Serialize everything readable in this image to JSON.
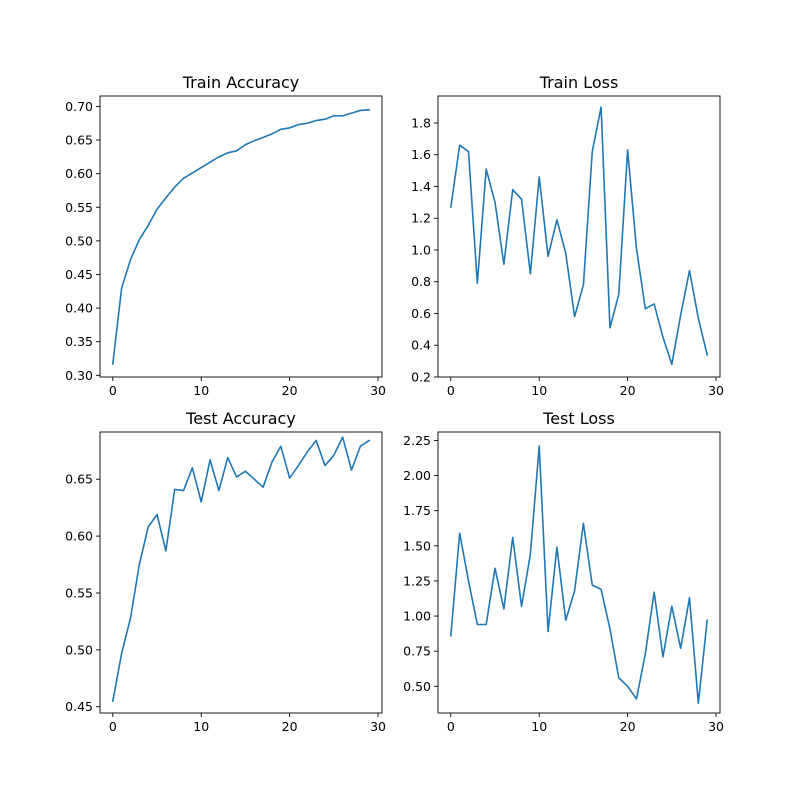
{
  "colors": {
    "line": "#1f77b4",
    "axes": "#000000",
    "background": "#ffffff"
  },
  "chart_data": [
    {
      "type": "line",
      "title": "Train Accuracy",
      "xlabel": "",
      "ylabel": "",
      "xlim": [
        -1.45,
        30.45
      ],
      "ylim": [
        0.2975,
        0.7155
      ],
      "xticks": [
        0,
        10,
        20,
        30
      ],
      "xtick_labels": [
        "0",
        "10",
        "20",
        "30"
      ],
      "yticks": [
        0.3,
        0.35,
        0.4,
        0.45,
        0.5,
        0.55,
        0.6,
        0.65,
        0.7
      ],
      "ytick_labels": [
        "0.30",
        "0.35",
        "0.40",
        "0.45",
        "0.50",
        "0.55",
        "0.60",
        "0.65",
        "0.70"
      ],
      "grid": false,
      "series": [
        {
          "x": [
            0,
            1,
            2,
            3,
            4,
            5,
            6,
            7,
            8,
            9,
            10,
            11,
            12,
            13,
            14,
            15,
            16,
            17,
            18,
            19,
            20,
            21,
            22,
            23,
            24,
            25,
            26,
            27,
            28,
            29
          ],
          "y": [
            0.317,
            0.43,
            0.472,
            0.502,
            0.523,
            0.547,
            0.564,
            0.58,
            0.593,
            0.601,
            0.609,
            0.617,
            0.625,
            0.631,
            0.634,
            0.643,
            0.649,
            0.654,
            0.659,
            0.666,
            0.668,
            0.673,
            0.675,
            0.679,
            0.681,
            0.686,
            0.686,
            0.69,
            0.694,
            0.695
          ]
        }
      ]
    },
    {
      "type": "line",
      "title": "Train Loss",
      "xlabel": "",
      "ylabel": "",
      "xlim": [
        -1.45,
        30.45
      ],
      "ylim": [
        0.2,
        1.97
      ],
      "xticks": [
        0,
        10,
        20,
        30
      ],
      "xtick_labels": [
        "0",
        "10",
        "20",
        "30"
      ],
      "yticks": [
        0.2,
        0.4,
        0.6,
        0.8,
        1.0,
        1.2,
        1.4,
        1.6,
        1.8
      ],
      "ytick_labels": [
        "0.2",
        "0.4",
        "0.6",
        "0.8",
        "1.0",
        "1.2",
        "1.4",
        "1.6",
        "1.8"
      ],
      "grid": false,
      "series": [
        {
          "x": [
            0,
            1,
            2,
            3,
            4,
            5,
            6,
            7,
            8,
            9,
            10,
            11,
            12,
            13,
            14,
            15,
            16,
            17,
            18,
            19,
            20,
            21,
            22,
            23,
            24,
            25,
            26,
            27,
            28,
            29
          ],
          "y": [
            1.27,
            1.66,
            1.62,
            0.79,
            1.51,
            1.3,
            0.91,
            1.38,
            1.32,
            0.85,
            1.46,
            0.96,
            1.19,
            0.98,
            0.58,
            0.78,
            1.62,
            1.9,
            0.51,
            0.72,
            1.63,
            1.01,
            0.63,
            0.66,
            0.45,
            0.28,
            0.59,
            0.87,
            0.57,
            0.34
          ]
        }
      ]
    },
    {
      "type": "line",
      "title": "Test Accuracy",
      "xlabel": "",
      "ylabel": "",
      "xlim": [
        -1.45,
        30.45
      ],
      "ylim": [
        0.4445,
        0.6915
      ],
      "xticks": [
        0,
        10,
        20,
        30
      ],
      "xtick_labels": [
        "0",
        "10",
        "20",
        "30"
      ],
      "yticks": [
        0.45,
        0.5,
        0.55,
        0.6,
        0.65
      ],
      "ytick_labels": [
        "0.45",
        "0.50",
        "0.55",
        "0.60",
        "0.65"
      ],
      "grid": false,
      "series": [
        {
          "x": [
            0,
            1,
            2,
            3,
            4,
            5,
            6,
            7,
            8,
            9,
            10,
            11,
            12,
            13,
            14,
            15,
            16,
            17,
            18,
            19,
            20,
            21,
            22,
            23,
            24,
            25,
            26,
            27,
            28,
            29
          ],
          "y": [
            0.455,
            0.497,
            0.528,
            0.575,
            0.608,
            0.619,
            0.587,
            0.641,
            0.64,
            0.66,
            0.63,
            0.667,
            0.64,
            0.669,
            0.652,
            0.657,
            0.65,
            0.643,
            0.665,
            0.679,
            0.651,
            0.662,
            0.674,
            0.684,
            0.662,
            0.671,
            0.687,
            0.658,
            0.679,
            0.684
          ]
        }
      ]
    },
    {
      "type": "line",
      "title": "Test Loss",
      "xlabel": "",
      "ylabel": "",
      "xlim": [
        -1.45,
        30.45
      ],
      "ylim": [
        0.31,
        2.31
      ],
      "xticks": [
        0,
        10,
        20,
        30
      ],
      "xtick_labels": [
        "0",
        "10",
        "20",
        "30"
      ],
      "yticks": [
        0.5,
        0.75,
        1.0,
        1.25,
        1.5,
        1.75,
        2.0,
        2.25
      ],
      "ytick_labels": [
        "0.50",
        "0.75",
        "1.00",
        "1.25",
        "1.50",
        "1.75",
        "2.00",
        "2.25"
      ],
      "grid": false,
      "series": [
        {
          "x": [
            0,
            1,
            2,
            3,
            4,
            5,
            6,
            7,
            8,
            9,
            10,
            11,
            12,
            13,
            14,
            15,
            16,
            17,
            18,
            19,
            20,
            21,
            22,
            23,
            24,
            25,
            26,
            27,
            28,
            29
          ],
          "y": [
            0.86,
            1.59,
            1.25,
            0.94,
            0.94,
            1.34,
            1.05,
            1.56,
            1.07,
            1.44,
            2.21,
            0.89,
            1.49,
            0.97,
            1.18,
            1.66,
            1.22,
            1.19,
            0.91,
            0.56,
            0.5,
            0.41,
            0.73,
            1.17,
            0.71,
            1.07,
            0.77,
            1.13,
            0.38,
            0.97
          ]
        }
      ]
    }
  ]
}
